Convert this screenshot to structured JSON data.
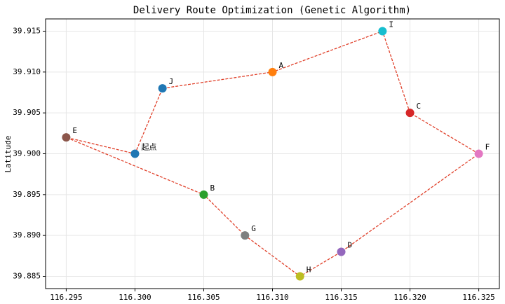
{
  "chart_data": {
    "type": "scatter",
    "title": "Delivery Route Optimization (Genetic Algorithm)",
    "ylabel": "Latitude",
    "labels": [
      "起点",
      "J",
      "A",
      "I",
      "C",
      "F",
      "D",
      "H",
      "G",
      "B",
      "E"
    ],
    "x": [
      116.3,
      116.302,
      116.31,
      116.318,
      116.32,
      116.325,
      116.315,
      116.312,
      116.308,
      116.305,
      116.295
    ],
    "y": [
      39.9,
      39.908,
      39.91,
      39.915,
      39.905,
      39.9,
      39.888,
      39.885,
      39.89,
      39.895,
      39.902
    ],
    "colors": [
      "#1f77b4",
      "#1f77b4",
      "#ff7f0e",
      "#17becf",
      "#d62728",
      "#e377c2",
      "#9467bd",
      "#bcbd22",
      "#7f7f7f",
      "#2ca02c",
      "#8c564b"
    ],
    "line_color": "#e0402a",
    "xlim": [
      116.2935,
      116.3265
    ],
    "ylim": [
      39.8835,
      39.9165
    ],
    "xticks": [
      116.295,
      {
        "value": 116.3,
        "label": "116.300"
      },
      116.305,
      {
        "value": 116.31,
        "label": "116.310"
      },
      116.315,
      {
        "value": 116.32,
        "label": "116.320"
      },
      116.325
    ],
    "yticks": [
      39.885,
      {
        "value": 39.89,
        "label": "39.890"
      },
      39.895,
      {
        "value": 39.9,
        "label": "39.900"
      },
      39.905,
      {
        "value": 39.91,
        "label": "39.910"
      },
      39.915
    ],
    "grid": true
  }
}
